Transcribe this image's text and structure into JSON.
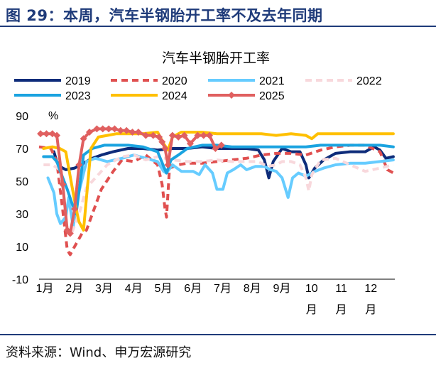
{
  "figure_title": "图 29：本周，汽车半钢胎开工率不及去年同期",
  "source_text": "资料来源：Wind、申万宏源研究",
  "chart_data": {
    "type": "line",
    "title": "汽车半钢胎开工率",
    "ylabel": "%",
    "ylim": [
      -10,
      90
    ],
    "yticks": [
      -10,
      10,
      30,
      50,
      70,
      90
    ],
    "xlim": [
      0,
      12
    ],
    "month_labels": [
      {
        "x": 0,
        "line1": "1月",
        "line2": ""
      },
      {
        "x": 1,
        "line1": "2月",
        "line2": ""
      },
      {
        "x": 2,
        "line1": "3月",
        "line2": ""
      },
      {
        "x": 3,
        "line1": "4月",
        "line2": ""
      },
      {
        "x": 4,
        "line1": "5月",
        "line2": ""
      },
      {
        "x": 5,
        "line1": "6月",
        "line2": ""
      },
      {
        "x": 6,
        "line1": "7月",
        "line2": ""
      },
      {
        "x": 7,
        "line1": "8月",
        "line2": ""
      },
      {
        "x": 8,
        "line1": "9月",
        "line2": ""
      },
      {
        "x": 9,
        "line1": "10",
        "line2": "月"
      },
      {
        "x": 10,
        "line1": "11",
        "line2": "月"
      },
      {
        "x": 11,
        "line1": "12",
        "line2": "月"
      }
    ],
    "legend_placement": "top",
    "series": [
      {
        "name": "2019",
        "color": "#0e2c7a",
        "style": "solid",
        "points": [
          [
            0.5,
            68
          ],
          [
            0.6,
            62
          ],
          [
            0.7,
            59
          ],
          [
            0.9,
            57
          ],
          [
            1.2,
            58
          ],
          [
            1.5,
            61
          ],
          [
            1.8,
            64
          ],
          [
            2.1,
            66
          ],
          [
            2.5,
            68
          ],
          [
            3,
            70
          ],
          [
            3.5,
            70
          ],
          [
            4,
            69
          ],
          [
            4.5,
            70
          ],
          [
            5,
            70
          ],
          [
            5.5,
            71
          ],
          [
            6,
            70
          ],
          [
            6.5,
            70
          ],
          [
            7,
            70
          ],
          [
            7.4,
            69
          ],
          [
            7.6,
            63
          ],
          [
            7.75,
            52
          ],
          [
            7.9,
            62
          ],
          [
            8.2,
            70
          ],
          [
            8.5,
            68
          ],
          [
            8.8,
            68
          ],
          [
            9.0,
            60
          ],
          [
            9.1,
            52
          ],
          [
            9.3,
            58
          ],
          [
            9.6,
            63
          ],
          [
            10,
            67
          ],
          [
            10.5,
            68
          ],
          [
            11,
            68
          ],
          [
            11.3,
            71
          ],
          [
            11.5,
            69
          ],
          [
            11.7,
            64
          ],
          [
            11.95,
            65
          ]
        ]
      },
      {
        "name": "2020",
        "color": "#e05050",
        "style": "dashed",
        "points": [
          [
            0,
            71
          ],
          [
            0.4,
            70
          ],
          [
            0.6,
            62
          ],
          [
            0.8,
            32
          ],
          [
            0.95,
            8
          ],
          [
            1.05,
            5
          ],
          [
            1.2,
            10
          ],
          [
            1.45,
            18
          ],
          [
            1.6,
            20
          ],
          [
            1.8,
            30
          ],
          [
            2.1,
            45
          ],
          [
            2.5,
            56
          ],
          [
            2.8,
            63
          ],
          [
            3.2,
            62
          ],
          [
            3.6,
            66
          ],
          [
            4.0,
            60
          ],
          [
            4.15,
            48
          ],
          [
            4.25,
            33
          ],
          [
            4.3,
            28
          ],
          [
            4.4,
            58
          ],
          [
            4.7,
            60
          ],
          [
            5,
            61
          ],
          [
            5.5,
            61
          ],
          [
            6,
            62
          ],
          [
            6.5,
            63
          ],
          [
            7,
            64
          ],
          [
            7.5,
            66
          ],
          [
            8,
            67
          ],
          [
            8.5,
            67
          ],
          [
            9,
            66
          ],
          [
            9.5,
            69
          ],
          [
            10,
            71
          ],
          [
            10.5,
            72
          ],
          [
            11,
            72
          ],
          [
            11.5,
            68
          ],
          [
            11.75,
            57
          ],
          [
            11.95,
            55
          ]
        ]
      },
      {
        "name": "2021",
        "color": "#66ccff",
        "style": "solid",
        "points": [
          [
            0.3,
            52
          ],
          [
            0.5,
            43
          ],
          [
            0.6,
            30
          ],
          [
            0.72,
            24
          ],
          [
            0.9,
            28
          ],
          [
            1.0,
            40
          ],
          [
            1.15,
            22
          ],
          [
            1.3,
            40
          ],
          [
            1.6,
            62
          ],
          [
            1.9,
            64
          ],
          [
            2.3,
            62
          ],
          [
            2.8,
            64
          ],
          [
            3.2,
            66
          ],
          [
            3.6,
            64
          ],
          [
            4.0,
            62
          ],
          [
            4.2,
            56
          ],
          [
            4.3,
            55
          ],
          [
            4.5,
            60
          ],
          [
            4.8,
            56
          ],
          [
            5.2,
            56
          ],
          [
            5.4,
            54
          ],
          [
            5.6,
            60
          ],
          [
            5.85,
            55
          ],
          [
            6.0,
            45
          ],
          [
            6.2,
            45
          ],
          [
            6.35,
            55
          ],
          [
            6.55,
            57
          ],
          [
            6.8,
            60
          ],
          [
            7,
            57
          ],
          [
            7.3,
            59
          ],
          [
            7.6,
            59
          ],
          [
            7.8,
            57
          ],
          [
            8.0,
            56
          ],
          [
            8.2,
            52
          ],
          [
            8.4,
            40
          ],
          [
            8.55,
            52
          ],
          [
            8.75,
            55
          ],
          [
            9.0,
            53
          ],
          [
            9.3,
            56
          ],
          [
            9.6,
            58
          ],
          [
            10,
            60
          ],
          [
            10.5,
            61
          ],
          [
            11,
            61
          ],
          [
            11.5,
            62
          ],
          [
            11.95,
            63
          ]
        ]
      },
      {
        "name": "2022",
        "color": "#f8d8dc",
        "style": "dashed",
        "points": [
          [
            0.15,
            60
          ],
          [
            0.45,
            60
          ],
          [
            0.7,
            57
          ],
          [
            0.85,
            38
          ],
          [
            0.95,
            20
          ],
          [
            1.1,
            18
          ],
          [
            1.35,
            30
          ],
          [
            1.6,
            46
          ],
          [
            1.9,
            52
          ],
          [
            2.3,
            60
          ],
          [
            2.8,
            65
          ],
          [
            3.2,
            66
          ],
          [
            3.6,
            63
          ],
          [
            4.0,
            65
          ],
          [
            4.5,
            63
          ],
          [
            5,
            62
          ],
          [
            5.5,
            62
          ],
          [
            6,
            63
          ],
          [
            6.5,
            62
          ],
          [
            7,
            62
          ],
          [
            7.4,
            62
          ],
          [
            7.7,
            59
          ],
          [
            8.0,
            60
          ],
          [
            8.2,
            62
          ],
          [
            8.5,
            62
          ],
          [
            8.8,
            60
          ],
          [
            9.0,
            52
          ],
          [
            9.1,
            44
          ],
          [
            9.2,
            54
          ],
          [
            9.5,
            63
          ],
          [
            10,
            64
          ],
          [
            10.5,
            60
          ],
          [
            11,
            56
          ],
          [
            11.5,
            58
          ],
          [
            11.95,
            60
          ]
        ]
      },
      {
        "name": "2023",
        "color": "#1aa3e0",
        "style": "solid",
        "points": [
          [
            0.15,
            65
          ],
          [
            0.45,
            65
          ],
          [
            0.6,
            62
          ],
          [
            0.8,
            52
          ],
          [
            0.95,
            45
          ],
          [
            1.1,
            37
          ],
          [
            1.25,
            30
          ],
          [
            1.35,
            44
          ],
          [
            1.5,
            66
          ],
          [
            1.8,
            70
          ],
          [
            2.2,
            72
          ],
          [
            2.6,
            72
          ],
          [
            3,
            72
          ],
          [
            3.5,
            71
          ],
          [
            4.0,
            68
          ],
          [
            4.2,
            59
          ],
          [
            4.3,
            55
          ],
          [
            4.45,
            63
          ],
          [
            4.7,
            66
          ],
          [
            5,
            70
          ],
          [
            5.5,
            72
          ],
          [
            6,
            72
          ],
          [
            6.5,
            71
          ],
          [
            7,
            71
          ],
          [
            7.5,
            71
          ],
          [
            8,
            71
          ],
          [
            8.5,
            71
          ],
          [
            9,
            71
          ],
          [
            9.5,
            72
          ],
          [
            10,
            72
          ],
          [
            10.5,
            72
          ],
          [
            11,
            72
          ],
          [
            11.5,
            72
          ],
          [
            11.95,
            71
          ]
        ]
      },
      {
        "name": "2024",
        "color": "#ffc000",
        "style": "solid",
        "points": [
          [
            0.15,
            70
          ],
          [
            0.45,
            71
          ],
          [
            0.7,
            70
          ],
          [
            0.9,
            68
          ],
          [
            1.1,
            48
          ],
          [
            1.25,
            33
          ],
          [
            1.35,
            25
          ],
          [
            1.5,
            20
          ],
          [
            1.6,
            40
          ],
          [
            1.75,
            70
          ],
          [
            2.0,
            77
          ],
          [
            2.3,
            78
          ],
          [
            2.6,
            79
          ],
          [
            3,
            79
          ],
          [
            3.5,
            79
          ],
          [
            4.0,
            80
          ],
          [
            4.2,
            73
          ],
          [
            4.35,
            69
          ],
          [
            4.5,
            77
          ],
          [
            4.8,
            80
          ],
          [
            5.5,
            80
          ],
          [
            6,
            79
          ],
          [
            6.5,
            79
          ],
          [
            7,
            79
          ],
          [
            7.5,
            79
          ],
          [
            8,
            78
          ],
          [
            8.5,
            79
          ],
          [
            9,
            78
          ],
          [
            9.2,
            76
          ],
          [
            9.4,
            79
          ],
          [
            10,
            79
          ],
          [
            10.5,
            79
          ],
          [
            11,
            79
          ],
          [
            11.5,
            79
          ],
          [
            11.95,
            79
          ]
        ]
      },
      {
        "name": "2025",
        "color": "#e06060",
        "style": "marker",
        "points": [
          [
            0.05,
            79
          ],
          [
            0.25,
            79
          ],
          [
            0.45,
            79
          ],
          [
            0.6,
            78
          ],
          [
            0.8,
            48
          ],
          [
            0.95,
            20
          ],
          [
            1.05,
            18
          ],
          [
            1.2,
            33
          ],
          [
            1.35,
            60
          ],
          [
            1.5,
            76
          ],
          [
            1.7,
            80
          ],
          [
            1.95,
            82
          ],
          [
            2.15,
            82
          ],
          [
            2.35,
            82
          ],
          [
            2.55,
            82
          ],
          [
            2.75,
            81
          ],
          [
            2.95,
            81
          ],
          [
            3.15,
            80
          ],
          [
            3.35,
            80
          ],
          [
            3.6,
            78
          ],
          [
            3.85,
            78
          ],
          [
            4.05,
            77
          ],
          [
            4.15,
            74
          ],
          [
            4.25,
            70
          ],
          [
            4.35,
            60
          ],
          [
            4.5,
            78
          ],
          [
            4.7,
            77
          ],
          [
            4.9,
            78
          ],
          [
            5.1,
            73
          ],
          [
            5.35,
            78
          ],
          [
            5.55,
            78
          ],
          [
            5.75,
            78
          ],
          [
            5.95,
            70
          ],
          [
            6.15,
            72
          ]
        ]
      }
    ]
  }
}
